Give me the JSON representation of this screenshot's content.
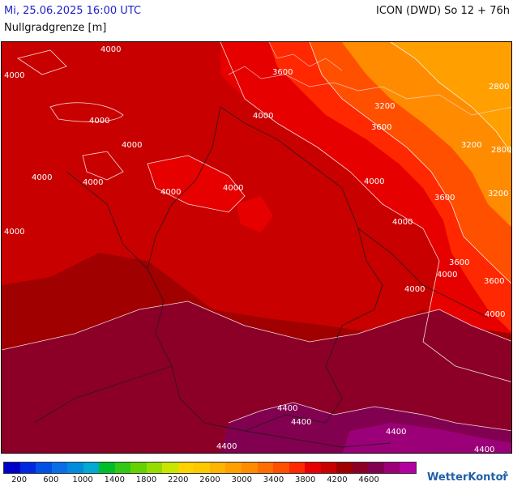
{
  "header": {
    "datetime": "Mi, 25.06.2025 16:00 UTC",
    "model_run": "ICON (DWD) So 12 + 76h",
    "parameter": "Nullgradgrenze [m]"
  },
  "legend": {
    "colors": [
      "#0000c8",
      "#0028e0",
      "#0050e6",
      "#0a6ee6",
      "#008cdc",
      "#00aad2",
      "#00be28",
      "#32c814",
      "#64d200",
      "#96dc00",
      "#c8e600",
      "#ffd200",
      "#ffc800",
      "#ffb400",
      "#ffa000",
      "#ff8c00",
      "#ff6e00",
      "#ff5000",
      "#ff2800",
      "#e60000",
      "#c80000",
      "#a00000",
      "#8c0028",
      "#820050",
      "#9b0078",
      "#b400a0"
    ],
    "labels": [
      "200",
      "600",
      "1000",
      "1400",
      "1800",
      "2200",
      "2600",
      "3000",
      "3400",
      "3800",
      "4200",
      "4600"
    ]
  },
  "map": {
    "contour_labels": [
      "4000",
      "4000",
      "4000",
      "4000",
      "4000",
      "4000",
      "4000",
      "4000",
      "4000",
      "4000",
      "4000",
      "4000",
      "4000",
      "4000",
      "3600",
      "3200",
      "3600",
      "3200",
      "2800",
      "2800",
      "3200",
      "3600",
      "3600",
      "3600",
      "4400",
      "4400",
      "4400",
      "4400",
      "4400"
    ]
  },
  "brand": {
    "name": "WetterKontor"
  }
}
